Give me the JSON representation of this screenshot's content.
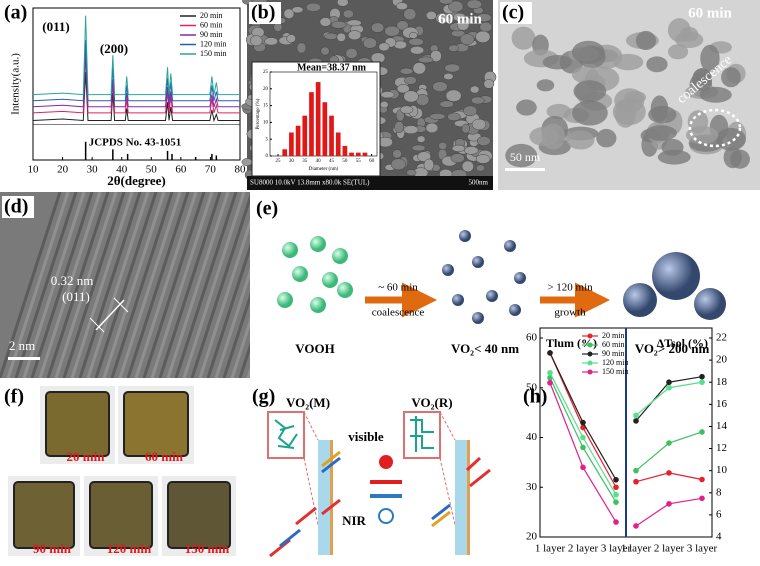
{
  "chart_data": [
    {
      "type": "line",
      "ylabel": "Intensity(a.u.)",
      "xlabel": "2θ(degree)",
      "xlim": [
        10,
        80
      ],
      "xticks": [
        10,
        20,
        30,
        40,
        50,
        60,
        70,
        80
      ],
      "ylim": [
        0,
        100
      ],
      "annotations": [
        "(011)",
        "(200)"
      ],
      "x": [
        10,
        20,
        27,
        27.8,
        28.6,
        36.4,
        37,
        37.6,
        41.2,
        41.7,
        42.2,
        54.8,
        55.5,
        56,
        56.6,
        57.2,
        69.8,
        70.5,
        71.2,
        72,
        72.6,
        80
      ],
      "series": [
        {
          "name": "20 min",
          "color": "#222222",
          "values": [
            26,
            27,
            26,
            58,
            26,
            26,
            44,
            26,
            26,
            34,
            26,
            26,
            38,
            26,
            35,
            26,
            26,
            33,
            26,
            30,
            26,
            26
          ]
        },
        {
          "name": "60 min",
          "color": "#e0206a",
          "values": [
            31,
            32,
            31,
            69,
            31,
            31,
            51,
            31,
            31,
            40,
            31,
            31,
            45,
            31,
            42,
            31,
            31,
            40,
            31,
            36,
            31,
            31
          ]
        },
        {
          "name": "90 min",
          "color": "#8a2a9a",
          "values": [
            35,
            36,
            35,
            70,
            35,
            35,
            53,
            35,
            35,
            44,
            35,
            35,
            48,
            35,
            45,
            35,
            35,
            43,
            35,
            40,
            35,
            35
          ]
        },
        {
          "name": "120 min",
          "color": "#2a5fb0",
          "values": [
            39,
            40,
            39,
            79,
            39,
            39,
            61,
            39,
            39,
            49,
            39,
            39,
            54,
            39,
            51,
            39,
            39,
            49,
            39,
            45,
            39,
            39
          ]
        },
        {
          "name": "150 min",
          "color": "#2aa59a",
          "values": [
            43,
            44,
            43,
            95,
            43,
            43,
            69,
            43,
            43,
            55,
            43,
            43,
            61,
            43,
            57,
            43,
            43,
            55,
            43,
            51,
            43,
            43
          ]
        }
      ],
      "reference": {
        "label": "JCPDS No. 43-1051",
        "x": [
          27.8,
          37,
          42,
          55.5,
          57,
          65,
          70.5,
          72
        ],
        "values": [
          12,
          7,
          4,
          6,
          4,
          2,
          4,
          3
        ]
      }
    },
    {
      "type": "bar",
      "title": "Mean=38.37 nm",
      "xlabel": "Diameter (nm)",
      "ylabel": "Percentage (%)",
      "color": "#e01818",
      "x": [
        27.5,
        30,
        32.5,
        35,
        37.5,
        40,
        42.5,
        45,
        47.5,
        50,
        52.5,
        55,
        57.5
      ],
      "values": [
        2,
        7,
        9,
        12,
        19,
        22,
        16,
        12,
        7,
        3,
        1,
        1,
        1
      ],
      "xlim": [
        22,
        62
      ],
      "xticks": [
        25,
        30,
        35,
        40,
        45,
        50,
        55,
        60
      ],
      "ylim": [
        0,
        25
      ],
      "yticks": [
        0,
        5,
        10,
        15,
        20,
        25
      ]
    },
    {
      "type": "line",
      "ylabel": "Tlum (%)",
      "y2label": "ΔTsol (%)",
      "categories": [
        "1 layer",
        "2 layer",
        "3 layer"
      ],
      "ylim": [
        20,
        60
      ],
      "yticks": [
        20,
        30,
        40,
        50,
        60
      ],
      "y2lim": [
        4,
        22
      ],
      "y2ticks": [
        4,
        6,
        8,
        10,
        12,
        14,
        16,
        18,
        20,
        22
      ],
      "series": [
        {
          "name": "20 min",
          "color": "#e8202a",
          "tlum": [
            57,
            42,
            30
          ],
          "dtsol": [
            9,
            9.8,
            9.2
          ]
        },
        {
          "name": "60 min",
          "color": "#3cc060",
          "tlum": [
            52,
            38,
            27
          ],
          "dtsol": [
            10,
            12.5,
            13.5
          ]
        },
        {
          "name": "90 min",
          "color": "#222222",
          "tlum": [
            57,
            43,
            31.5
          ],
          "dtsol": [
            14.5,
            18,
            18.5
          ]
        },
        {
          "name": "120 min",
          "color": "#55e08c",
          "tlum": [
            53,
            40,
            28.5
          ],
          "dtsol": [
            15,
            17.5,
            18
          ]
        },
        {
          "name": "150 min",
          "color": "#e0208c",
          "tlum": [
            51,
            34,
            23
          ],
          "dtsol": [
            5,
            7,
            7.5
          ]
        }
      ]
    }
  ],
  "panels": {
    "a": "(a)",
    "b": "(b)",
    "c": "(c)",
    "d": "(d)",
    "e": "(e)",
    "f": "(f)",
    "g": "(g)",
    "h": "(h)"
  },
  "sem": {
    "duration": "60 min",
    "info": "SU8000 10.0kV 13.8mm x80.0k SE(TUL)",
    "scale": "500nm"
  },
  "tem": {
    "duration": "60 min",
    "annotation": "coalescence",
    "scale": "50 nm"
  },
  "hrtem": {
    "spacing": "0.32 nm",
    "plane": "(011)",
    "scale": "2 nm"
  },
  "scheme": {
    "stages": [
      "VOOH",
      "VO₂< 40 nm",
      "VO₂> 200 nm"
    ],
    "arrows": [
      {
        "top": "~ 60 min",
        "bottom": "coalescence"
      },
      {
        "top": "> 120 min",
        "bottom": "growth"
      }
    ]
  },
  "films": [
    "20 min",
    "60 min",
    "90 min",
    "120 min",
    "150 min"
  ],
  "mechanism": {
    "left": "VO₂(M)",
    "right": "VO₂(R)",
    "visible": "visible",
    "nir": "NIR"
  }
}
